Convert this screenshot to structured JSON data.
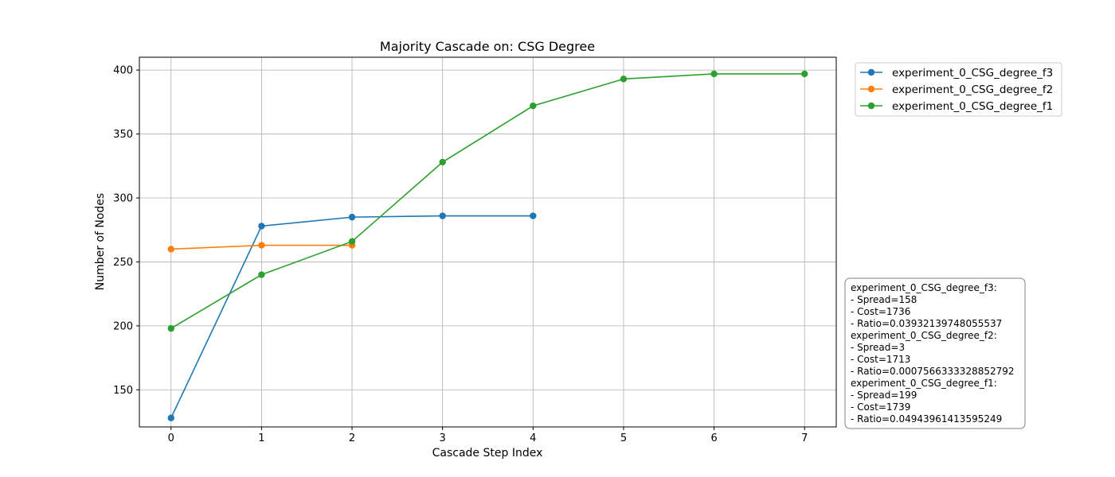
{
  "chart_data": {
    "type": "line",
    "title": "Majority Cascade on: CSG Degree",
    "xlabel": "Cascade Step Index",
    "ylabel": "Number of Nodes",
    "xlim": [
      -0.35,
      7.35
    ],
    "ylim": [
      121,
      410
    ],
    "x_ticks": [
      0,
      1,
      2,
      3,
      4,
      5,
      6,
      7
    ],
    "y_ticks": [
      150,
      200,
      250,
      300,
      350,
      400
    ],
    "grid": true,
    "legend_position": "outside-top-right",
    "series": [
      {
        "name": "experiment_0_CSG_degree_f3",
        "color": "#1f77b4",
        "x": [
          0,
          1,
          2,
          3,
          4
        ],
        "y": [
          128,
          278,
          285,
          286,
          286
        ]
      },
      {
        "name": "experiment_0_CSG_degree_f2",
        "color": "#ff7f0e",
        "x": [
          0,
          1,
          2
        ],
        "y": [
          260,
          263,
          263
        ]
      },
      {
        "name": "experiment_0_CSG_degree_f1",
        "color": "#2ca02c",
        "x": [
          0,
          1,
          2,
          3,
          4,
          5,
          6,
          7
        ],
        "y": [
          198,
          240,
          266,
          328,
          372,
          393,
          397,
          397
        ]
      }
    ],
    "stats_box": [
      "experiment_0_CSG_degree_f3:",
      "- Spread=158",
      "- Cost=1736",
      "- Ratio=0.03932139748055537",
      "experiment_0_CSG_degree_f2:",
      "- Spread=3",
      "- Cost=1713",
      "- Ratio=0.0007566333328852792",
      "experiment_0_CSG_degree_f1:",
      "- Spread=199",
      "- Cost=1739",
      "- Ratio=0.04943961413595249"
    ]
  }
}
